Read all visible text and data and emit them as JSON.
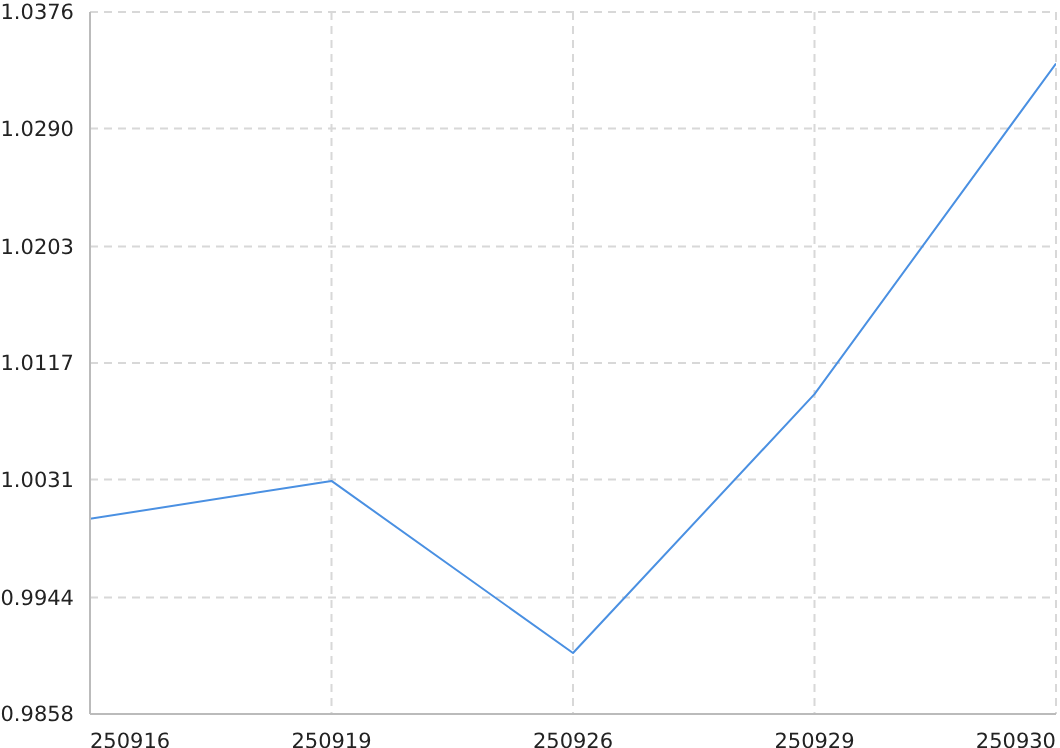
{
  "chart_data": {
    "type": "line",
    "categories": [
      "250916",
      "250919",
      "250926",
      "250929",
      "250930"
    ],
    "series": [
      {
        "color": "#4a90e2",
        "values": [
          1.0002,
          1.003,
          0.9903,
          1.0094,
          1.0338
        ]
      }
    ],
    "ylim": [
      0.9858,
      1.0376
    ],
    "yticks": [
      0.9858,
      0.9944,
      1.0031,
      1.0117,
      1.0203,
      {
        "value": 1.029,
        "label": "1.0290"
      },
      1.0376
    ],
    "grid": true,
    "marker": "none",
    "line_style": "solid",
    "legend": false
  }
}
